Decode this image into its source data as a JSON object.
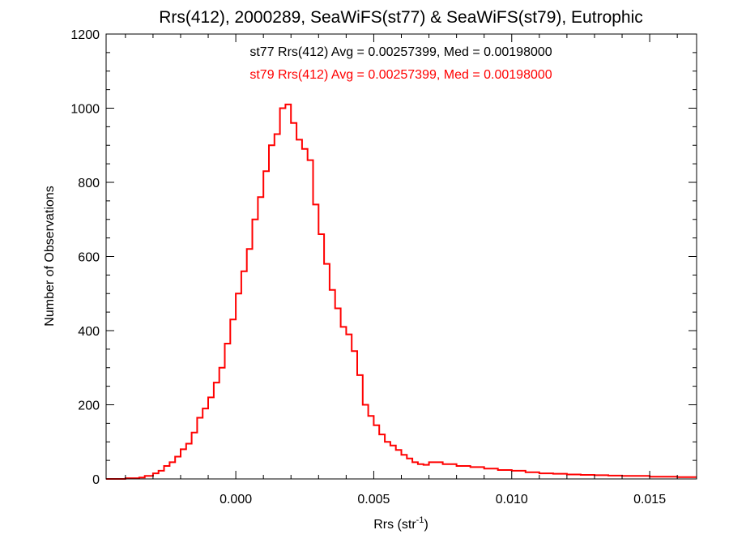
{
  "colors": {
    "series": "#ff0000",
    "axes": "#000000",
    "background": "#ffffff"
  },
  "chart_data": {
    "type": "line",
    "style": "histogram-step",
    "title": "Rrs(412), 2000289, SeaWiFS(st77) & SeaWiFS(st79), Eutrophic",
    "xlabel": {
      "main": "Rrs (str",
      "sup": "-1",
      "end": ")"
    },
    "ylabel": "Number of Observations",
    "xlim": [
      -0.0047,
      0.0167
    ],
    "ylim": [
      0,
      1200
    ],
    "xticks": [
      0.0,
      0.005,
      0.01,
      0.015
    ],
    "xtick_labels": [
      "0.000",
      "0.005",
      "0.010",
      "0.015"
    ],
    "yticks": [
      0,
      200,
      400,
      600,
      800,
      1000,
      1200
    ],
    "ytick_labels": [
      "0",
      "200",
      "400",
      "600",
      "800",
      "1000",
      "1200"
    ],
    "annotations": [
      {
        "text": "st77 Rrs(412) Avg = 0.00257399, Med = 0.00198000",
        "color": "#000000"
      },
      {
        "text": "st79 Rrs(412) Avg = 0.00257399, Med = 0.00198000",
        "color": "#ff0000"
      }
    ],
    "grid": false,
    "series": [
      {
        "color": "#ff0000",
        "x": [
          -0.0047,
          -0.004,
          -0.0035,
          -0.0033,
          -0.003,
          -0.0028,
          -0.0026,
          -0.0024,
          -0.0022,
          -0.002,
          -0.0018,
          -0.0016,
          -0.0014,
          -0.0012,
          -0.001,
          -0.0008,
          -0.0006,
          -0.0004,
          -0.0002,
          0.0,
          0.0002,
          0.0004,
          0.0006,
          0.0008,
          0.001,
          0.0012,
          0.0014,
          0.0016,
          0.0018,
          0.002,
          0.0022,
          0.0024,
          0.0026,
          0.0028,
          0.003,
          0.0032,
          0.0034,
          0.0036,
          0.0038,
          0.004,
          0.0042,
          0.0044,
          0.0046,
          0.0048,
          0.005,
          0.0052,
          0.0054,
          0.0056,
          0.0058,
          0.006,
          0.0062,
          0.0064,
          0.0066,
          0.0068,
          0.007,
          0.0075,
          0.008,
          0.0085,
          0.009,
          0.0095,
          0.01,
          0.0105,
          0.011,
          0.0115,
          0.012,
          0.0125,
          0.013,
          0.0135,
          0.014,
          0.0145,
          0.015,
          0.0155,
          0.016,
          0.0165
        ],
        "values": [
          0,
          2,
          4,
          8,
          15,
          22,
          35,
          45,
          60,
          80,
          95,
          125,
          165,
          190,
          220,
          260,
          300,
          365,
          430,
          500,
          560,
          620,
          700,
          760,
          830,
          900,
          930,
          1000,
          1010,
          960,
          915,
          890,
          860,
          740,
          660,
          580,
          510,
          460,
          410,
          390,
          345,
          280,
          200,
          170,
          145,
          120,
          100,
          90,
          78,
          65,
          55,
          45,
          40,
          38,
          45,
          40,
          35,
          32,
          28,
          24,
          22,
          18,
          15,
          14,
          12,
          11,
          10,
          9,
          8,
          8,
          6,
          6,
          5,
          5
        ]
      }
    ]
  }
}
